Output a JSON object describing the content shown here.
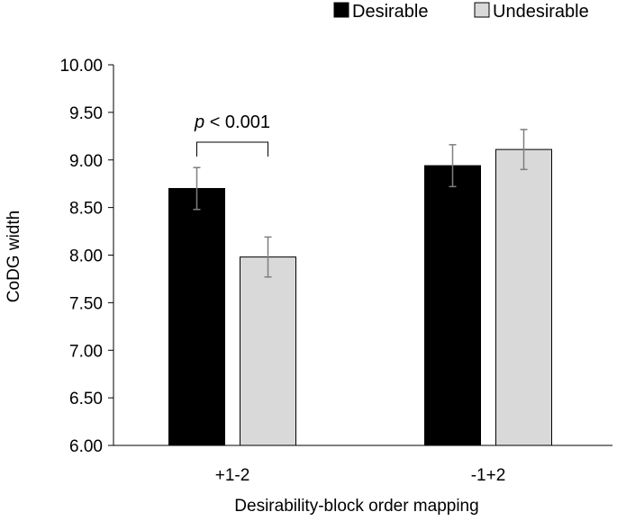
{
  "chart_data": {
    "type": "bar",
    "title": "",
    "xlabel": "Desirability-block order mapping",
    "ylabel": "CoDG width",
    "ylim": [
      6.0,
      10.0
    ],
    "ytick_step": 0.5,
    "ytick_labels": [
      "6.00",
      "6.50",
      "7.00",
      "7.50",
      "8.00",
      "8.50",
      "9.00",
      "9.50",
      "10.00"
    ],
    "categories": [
      "+1-2",
      "-1+2"
    ],
    "series": [
      {
        "name": "Desirable",
        "color": "#000000",
        "values": [
          8.7,
          8.94
        ],
        "error": [
          0.22,
          0.22
        ]
      },
      {
        "name": "Undesirable",
        "color": "#d9d9d9",
        "values": [
          7.98,
          9.11
        ],
        "error": [
          0.21,
          0.21
        ]
      }
    ],
    "legend_position": "top-right",
    "grid": false,
    "annotations": [
      {
        "category_index": 0,
        "prefix_italic": "p",
        "text": " < 0.001"
      }
    ]
  }
}
